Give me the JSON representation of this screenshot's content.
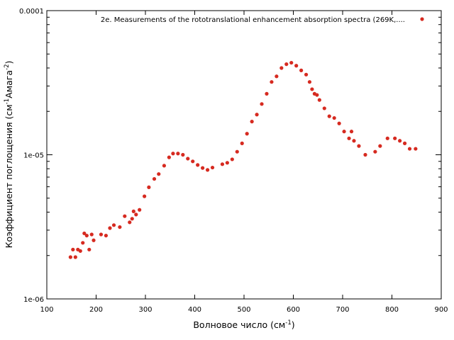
{
  "chart_data": {
    "type": "scatter",
    "title": "",
    "xlabel": "Волновое число (см",
    "xlabel_sup": "-1",
    "xlabel_end": ")",
    "ylabel": "Коэффициент поглощения (см",
    "ylabel_sup1": "-1",
    "ylabel_mid": "Амага",
    "ylabel_sup2": "-2",
    "ylabel_end": ")",
    "xlim": [
      100,
      900
    ],
    "ylim": [
      1e-06,
      0.0001
    ],
    "yscale": "log",
    "x_ticks": [
      100,
      200,
      300,
      400,
      500,
      600,
      700,
      800,
      900
    ],
    "x_tick_labels": [
      "100",
      "200",
      "300",
      "400",
      "500",
      "600",
      "700",
      "800",
      "900"
    ],
    "y_ticks": [
      1e-06,
      1e-05,
      0.0001
    ],
    "y_tick_labels": [
      "1e-06",
      "1e-05",
      "0.0001"
    ],
    "grid": false,
    "legend_position": "top-right",
    "series": [
      {
        "name": "2e. Measurements of the rototranslational enhancement absorption spectra (269K,....",
        "color": "#d62a20",
        "points": [
          [
            148,
            1.95e-06
          ],
          [
            153,
            2.2e-06
          ],
          [
            158,
            1.95e-06
          ],
          [
            163,
            2.2e-06
          ],
          [
            168,
            2.15e-06
          ],
          [
            173,
            2.45e-06
          ],
          [
            176,
            2.85e-06
          ],
          [
            181,
            2.75e-06
          ],
          [
            186,
            2.2e-06
          ],
          [
            191,
            2.8e-06
          ],
          [
            195,
            2.55e-06
          ],
          [
            210,
            2.8e-06
          ],
          [
            220,
            2.75e-06
          ],
          [
            228,
            3.1e-06
          ],
          [
            236,
            3.25e-06
          ],
          [
            248,
            3.15e-06
          ],
          [
            258,
            3.75e-06
          ],
          [
            268,
            3.4e-06
          ],
          [
            273,
            3.6e-06
          ],
          [
            276,
            4.05e-06
          ],
          [
            281,
            3.85e-06
          ],
          [
            288,
            4.15e-06
          ],
          [
            298,
            5.15e-06
          ],
          [
            307,
            5.95e-06
          ],
          [
            318,
            6.8e-06
          ],
          [
            327,
            7.35e-06
          ],
          [
            338,
            8.4e-06
          ],
          [
            348,
            9.6e-06
          ],
          [
            356,
            1.02e-05
          ],
          [
            366,
            1.02e-05
          ],
          [
            376,
            1e-05
          ],
          [
            386,
            9.4e-06
          ],
          [
            396,
            9e-06
          ],
          [
            406,
            8.5e-06
          ],
          [
            416,
            8.1e-06
          ],
          [
            426,
            7.85e-06
          ],
          [
            436,
            8.15e-06
          ],
          [
            456,
            8.6e-06
          ],
          [
            466,
            8.8e-06
          ],
          [
            476,
            9.3e-06
          ],
          [
            486,
            1.05e-05
          ],
          [
            496,
            1.2e-05
          ],
          [
            506,
            1.4e-05
          ],
          [
            516,
            1.7e-05
          ],
          [
            526,
            1.9e-05
          ],
          [
            536,
            2.25e-05
          ],
          [
            546,
            2.65e-05
          ],
          [
            556,
            3.2e-05
          ],
          [
            566,
            3.5e-05
          ],
          [
            576,
            4e-05
          ],
          [
            586,
            4.25e-05
          ],
          [
            596,
            4.35e-05
          ],
          [
            606,
            4.15e-05
          ],
          [
            616,
            3.85e-05
          ],
          [
            626,
            3.6e-05
          ],
          [
            633,
            3.2e-05
          ],
          [
            638,
            2.85e-05
          ],
          [
            643,
            2.65e-05
          ],
          [
            648,
            2.6e-05
          ],
          [
            653,
            2.4e-05
          ],
          [
            663,
            2.1e-05
          ],
          [
            673,
            1.85e-05
          ],
          [
            683,
            1.8e-05
          ],
          [
            693,
            1.65e-05
          ],
          [
            703,
            1.45e-05
          ],
          [
            713,
            1.3e-05
          ],
          [
            718,
            1.45e-05
          ],
          [
            723,
            1.25e-05
          ],
          [
            733,
            1.15e-05
          ],
          [
            746,
            1e-05
          ],
          [
            766,
            1.05e-05
          ],
          [
            776,
            1.15e-05
          ],
          [
            791,
            1.3e-05
          ],
          [
            806,
            1.3e-05
          ],
          [
            816,
            1.25e-05
          ],
          [
            826,
            1.2e-05
          ],
          [
            836,
            1.1e-05
          ],
          [
            848,
            1.1e-05
          ]
        ]
      }
    ]
  }
}
